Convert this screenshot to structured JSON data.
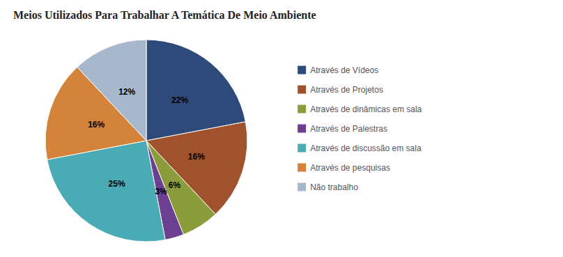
{
  "chart_data": {
    "type": "pie",
    "title": "Meios Utilizados Para Trabalhar A Temática De Meio Ambiente",
    "categories": [
      "Através de Vídeos",
      "Através de Projetos",
      "Através de dinâmicas em sala",
      "Através de Palestras",
      "Através de discussão em sala",
      "Através de pesquisas",
      "Não trabalho"
    ],
    "values": [
      22,
      16,
      6,
      3,
      25,
      16,
      12
    ],
    "value_labels": [
      "22%",
      "16%",
      "6%",
      "3%",
      "25%",
      "16%",
      "12%"
    ],
    "colors": [
      "#2E4A7A",
      "#A0522D",
      "#8B9C3A",
      "#6B4090",
      "#4AABB5",
      "#D4843A",
      "#A8B8CC"
    ],
    "data_labels": true,
    "legend": "right"
  }
}
